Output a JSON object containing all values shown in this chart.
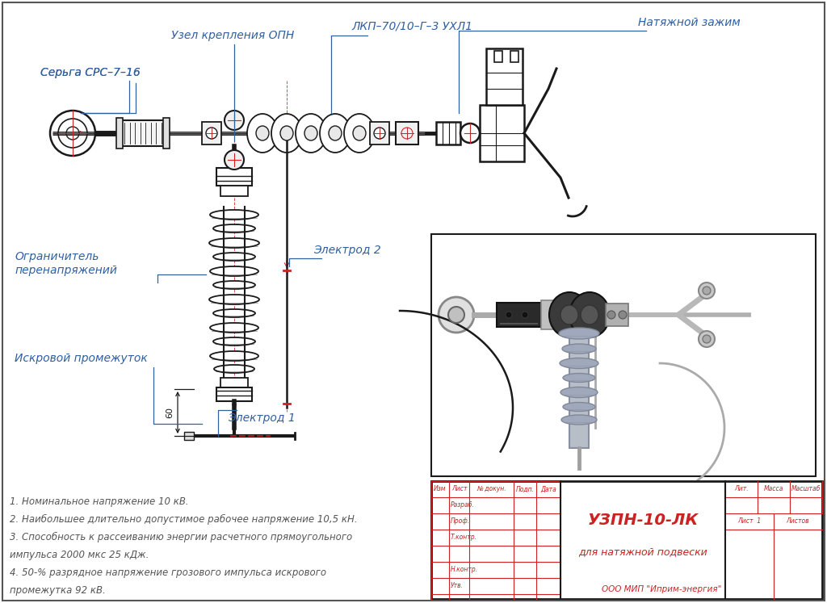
{
  "bg_color": "#ffffff",
  "drawing_bg": "#ffffff",
  "photo_bg": "#f0f0f0",
  "dark": "#1a1a1a",
  "blue": "#3060a0",
  "red": "#cc2222",
  "gray": "#888888",
  "lightgray": "#cccccc",
  "darkgray": "#444444",
  "title_block": {
    "product_name": "УЗПН-10-ЛК",
    "product_subtitle": "для натяжной подвески",
    "company": "ООО МИП \"Иприм-энергия\"",
    "liter": "Лит.",
    "massa": "Масса",
    "masshtab": "Масштаб",
    "list_text": "Лист  1",
    "listov": "Листов"
  },
  "title_block_headers": [
    "Изм",
    "Лист",
    "№ докун.",
    "Подп.",
    "Дата"
  ],
  "title_block_rows": [
    "Разраб.",
    "Проф.",
    "Т.контр.",
    "",
    "Н.контр.",
    "Утв."
  ],
  "notes": [
    "1. Номинальное напряжение 10 кВ.",
    "2. Наибольшее длительно допустимое рабочее напряжение 10,5 кН.",
    "3. Способность к рассеиванию энергии расчетного прямоугольного",
    "импульса 2000 мкс 25 кДж.",
    "4. 50-% разрядное напряжение грозового импульса искрового",
    "промежутка 92 кВ."
  ]
}
